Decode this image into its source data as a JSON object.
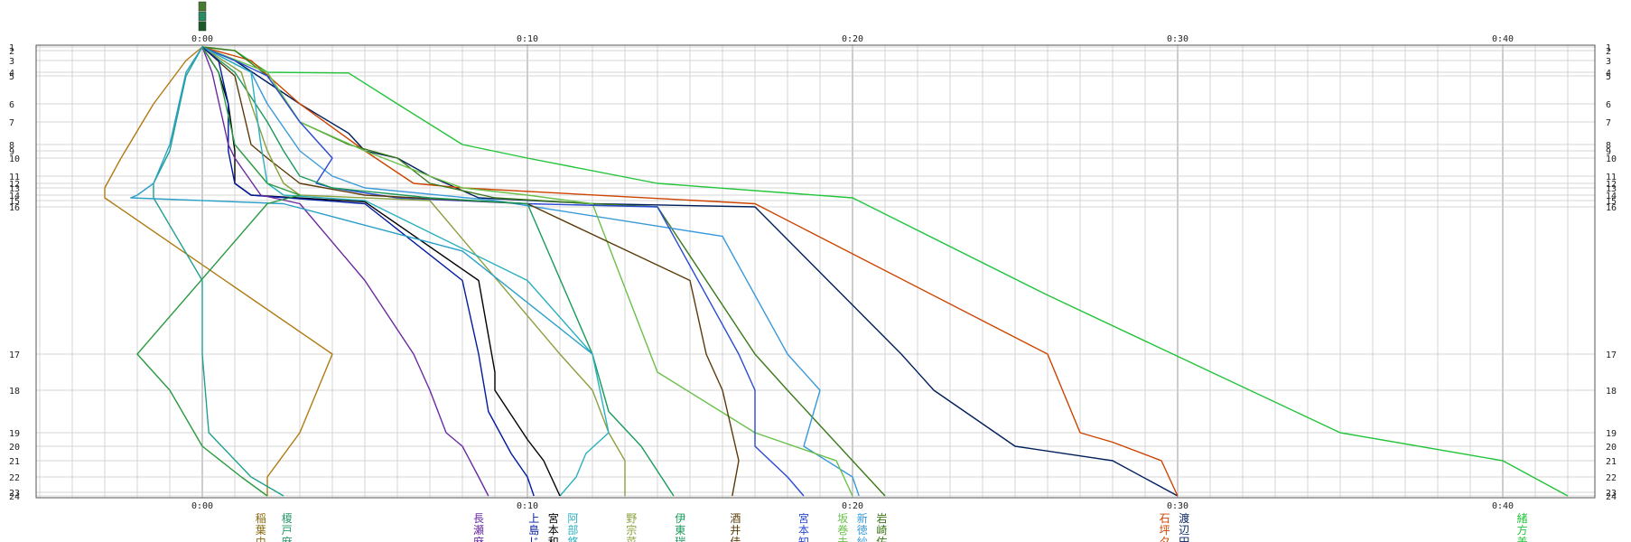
{
  "chart_data": {
    "type": "line",
    "x_axis": {
      "unit": "minutes",
      "range": [
        -6,
        42
      ],
      "ticks": [
        {
          "value": 0,
          "label": "0:00"
        },
        {
          "value": 10,
          "label": "0:10"
        },
        {
          "value": 20,
          "label": "0:20"
        },
        {
          "value": 30,
          "label": "0:30"
        },
        {
          "value": 40,
          "label": "0:40"
        }
      ],
      "minor_grid_step": 1,
      "major_grid_step": 10
    },
    "y_axis": {
      "rows": [
        "1",
        "2",
        "3",
        "4",
        "5",
        "6",
        "7",
        "8",
        "9",
        "10",
        "11",
        "12",
        "13",
        "14",
        "15",
        "16",
        "17",
        "18",
        "19",
        "20",
        "21",
        "22",
        "23",
        "24"
      ],
      "direction": "top-to-bottom"
    },
    "grid": true,
    "colors": {
      "minor_grid": "#d4d4d4",
      "major_grid": "#9a9a9a",
      "frame": "#555555"
    },
    "series": [
      {
        "label": "緒方美",
        "color": "#22c43a",
        "points": [
          [
            0,
            1
          ],
          [
            1,
            2
          ],
          [
            2,
            4
          ],
          [
            4.5,
            4.2
          ],
          [
            6,
            6
          ],
          [
            8,
            8
          ],
          [
            10,
            10
          ],
          [
            14,
            12
          ],
          [
            20,
            14.5
          ],
          [
            26,
            16.6
          ],
          [
            35,
            19
          ],
          [
            40,
            21
          ],
          [
            42,
            24
          ]
        ]
      },
      {
        "label": "渡辺円",
        "color": "#001f5b",
        "points": [
          [
            0,
            1
          ],
          [
            1,
            3
          ],
          [
            3,
            6
          ],
          [
            4.5,
            7.5
          ],
          [
            5,
            9
          ],
          [
            6,
            10
          ],
          [
            7,
            11
          ],
          [
            8.5,
            14.5
          ],
          [
            12,
            15.5
          ],
          [
            17,
            16
          ],
          [
            21.5,
            17
          ],
          [
            22.5,
            18
          ],
          [
            25,
            20
          ],
          [
            28,
            21
          ],
          [
            30,
            24
          ]
        ]
      },
      {
        "label": "石坪夕",
        "color": "#cc4400",
        "points": [
          [
            0,
            1
          ],
          [
            1.5,
            3
          ],
          [
            3,
            6
          ],
          [
            5,
            9
          ],
          [
            6.5,
            12
          ],
          [
            8,
            13
          ],
          [
            17,
            15.5
          ],
          [
            26,
            17
          ],
          [
            27,
            19
          ],
          [
            28,
            19.7
          ],
          [
            29.5,
            21
          ],
          [
            30,
            24
          ]
        ]
      },
      {
        "label": "岩崎佑",
        "color": "#3a7a1a",
        "points": [
          [
            0,
            1
          ],
          [
            1,
            2
          ],
          [
            2,
            5
          ],
          [
            3,
            7
          ],
          [
            4.5,
            8
          ],
          [
            6,
            10
          ],
          [
            7,
            12
          ],
          [
            9,
            14.5
          ],
          [
            12,
            15.5
          ],
          [
            14,
            16
          ],
          [
            17,
            17
          ],
          [
            18,
            18
          ],
          [
            20,
            21
          ],
          [
            21,
            24
          ]
        ]
      },
      {
        "label": "新徳紗",
        "color": "#3a9ad9",
        "points": [
          [
            0,
            1
          ],
          [
            1.5,
            4
          ],
          [
            2,
            6
          ],
          [
            3,
            9
          ],
          [
            4,
            11
          ],
          [
            5,
            13
          ],
          [
            9,
            15
          ],
          [
            16,
            16.2
          ],
          [
            18,
            17
          ],
          [
            19,
            18
          ],
          [
            18.5,
            20
          ],
          [
            20,
            22
          ],
          [
            20.2,
            24
          ]
        ]
      },
      {
        "label": "坂巻未",
        "color": "#6ac04a",
        "points": [
          [
            0,
            1
          ],
          [
            2,
            4
          ],
          [
            3,
            7
          ],
          [
            5,
            9
          ],
          [
            7,
            11
          ],
          [
            8,
            13
          ],
          [
            10,
            14
          ],
          [
            12,
            15.5
          ],
          [
            14,
            17.5
          ],
          [
            17,
            19
          ],
          [
            19.5,
            21
          ],
          [
            20,
            24
          ]
        ]
      },
      {
        "label": "宮本知",
        "color": "#2a4ad0",
        "points": [
          [
            0,
            1
          ],
          [
            1,
            3
          ],
          [
            2,
            5
          ],
          [
            3,
            7
          ],
          [
            4,
            10
          ],
          [
            3.5,
            12
          ],
          [
            4,
            13
          ],
          [
            6,
            14.5
          ],
          [
            10,
            15.5
          ],
          [
            14,
            16
          ],
          [
            16.5,
            17
          ],
          [
            17,
            18
          ],
          [
            17,
            20
          ],
          [
            18,
            22
          ],
          [
            18.5,
            24
          ]
        ]
      },
      {
        "label": "酒井佳",
        "color": "#5a3a08",
        "points": [
          [
            0,
            1
          ],
          [
            1,
            5
          ],
          [
            1.5,
            8
          ],
          [
            2,
            10
          ],
          [
            3,
            12
          ],
          [
            5,
            14
          ],
          [
            10,
            15.5
          ],
          [
            15,
            16.5
          ],
          [
            15.5,
            17
          ],
          [
            16,
            18
          ],
          [
            16.5,
            21
          ],
          [
            16.3,
            24
          ]
        ]
      },
      {
        "label": "伊東瑞",
        "color": "#1a9a5a",
        "points": [
          [
            0,
            1
          ],
          [
            1,
            4
          ],
          [
            2,
            7
          ],
          [
            2.5,
            9
          ],
          [
            3,
            11
          ],
          [
            4,
            13
          ],
          [
            7,
            14.5
          ],
          [
            10,
            15.5
          ],
          [
            12,
            17
          ],
          [
            12.5,
            18.5
          ],
          [
            13.5,
            20
          ],
          [
            14.5,
            24
          ]
        ]
      },
      {
        "label": "野宗菜",
        "color": "#8aa040",
        "points": [
          [
            0,
            1
          ],
          [
            1.2,
            4
          ],
          [
            1.5,
            6
          ],
          [
            2,
            9
          ],
          [
            2.5,
            12
          ],
          [
            3,
            14
          ],
          [
            7,
            15
          ],
          [
            11,
            17
          ],
          [
            12,
            18
          ],
          [
            12.5,
            19
          ],
          [
            13,
            21
          ],
          [
            13,
            24
          ]
        ]
      },
      {
        "label": "阿部悠",
        "color": "#2ab0c0",
        "points": [
          [
            0,
            1
          ],
          [
            1.5,
            4
          ],
          [
            1.8,
            8
          ],
          [
            2,
            12
          ],
          [
            2.5,
            14
          ],
          [
            5,
            15
          ],
          [
            10,
            16.5
          ],
          [
            12,
            17
          ],
          [
            12.5,
            19
          ],
          [
            11.8,
            20.5
          ],
          [
            11.5,
            22
          ],
          [
            11,
            24
          ]
        ]
      },
      {
        "label": "宮本和",
        "color": "#000000",
        "points": [
          [
            0,
            1
          ],
          [
            0.5,
            4
          ],
          [
            0.8,
            6
          ],
          [
            1,
            9
          ],
          [
            1,
            12
          ],
          [
            1.5,
            14
          ],
          [
            5,
            15.2
          ],
          [
            8.5,
            16.5
          ],
          [
            9,
            17.5
          ],
          [
            9,
            18
          ],
          [
            10,
            19.5
          ],
          [
            10.5,
            21
          ],
          [
            11,
            24
          ]
        ]
      },
      {
        "label": "上島じ",
        "color": "#001aa0",
        "points": [
          [
            0,
            1
          ],
          [
            0.5,
            3
          ],
          [
            0.8,
            6
          ],
          [
            0.8,
            9
          ],
          [
            1,
            12
          ],
          [
            1.5,
            14
          ],
          [
            5,
            15.5
          ],
          [
            8,
            16.5
          ],
          [
            8.5,
            17
          ],
          [
            8.8,
            18.5
          ],
          [
            9.5,
            20.5
          ],
          [
            10,
            22
          ],
          [
            10.2,
            24
          ]
        ]
      },
      {
        "label": "長瀬麻",
        "color": "#6a2aa0",
        "points": [
          [
            0,
            1
          ],
          [
            0.3,
            4
          ],
          [
            0.8,
            8
          ],
          [
            1,
            10
          ],
          [
            1.8,
            14
          ],
          [
            3,
            15.5
          ],
          [
            5,
            16.5
          ],
          [
            6.5,
            17
          ],
          [
            7,
            18
          ],
          [
            7.5,
            19
          ],
          [
            8,
            20
          ],
          [
            8.5,
            22
          ],
          [
            8.8,
            24
          ]
        ]
      },
      {
        "label": "稲葉由",
        "color": "#b07a10",
        "points": [
          [
            0,
            1
          ],
          [
            -0.5,
            3
          ],
          [
            -1.5,
            6
          ],
          [
            -2.5,
            10
          ],
          [
            -3,
            13
          ],
          [
            -3,
            14.5
          ],
          [
            4,
            17
          ],
          [
            3,
            19
          ],
          [
            2,
            22
          ],
          [
            2,
            24
          ]
        ]
      },
      {
        "label": "榎戸麻",
        "color": "#20a090",
        "points": [
          [
            0,
            1
          ],
          [
            -0.5,
            5
          ],
          [
            -1,
            9
          ],
          [
            -1.5,
            12
          ],
          [
            -1.5,
            14.5
          ],
          [
            0,
            16.5
          ],
          [
            0,
            17
          ],
          [
            0.2,
            19
          ],
          [
            1.5,
            22
          ],
          [
            2.5,
            24
          ]
        ]
      },
      {
        "label": "",
        "color": "#2aa0c8",
        "points": [
          [
            0,
            1
          ],
          [
            -0.5,
            4
          ],
          [
            -1,
            8
          ],
          [
            -1.5,
            12
          ],
          [
            -2,
            14
          ],
          [
            -2.2,
            14.5
          ],
          [
            2.5,
            15.5
          ],
          [
            8,
            16.3
          ],
          [
            12,
            17
          ]
        ]
      },
      {
        "label": "",
        "color": "#2a9a40",
        "points": [
          [
            0,
            1
          ],
          [
            0.5,
            4
          ],
          [
            1,
            8
          ],
          [
            2,
            12
          ],
          [
            3,
            14
          ],
          [
            2,
            15.5
          ],
          [
            -2,
            17
          ],
          [
            -1,
            18
          ],
          [
            0,
            20
          ],
          [
            1.2,
            22
          ],
          [
            2,
            24
          ]
        ]
      }
    ],
    "bottom_labels": [
      {
        "text": "稲葉由",
        "x": 1.8,
        "color": "#8a6a10"
      },
      {
        "text": "榎戸麻",
        "x": 2.6,
        "color": "#2a9a6a"
      },
      {
        "text": "長瀬麻",
        "x": 8.5,
        "color": "#6a2aa0"
      },
      {
        "text": "上島じ",
        "x": 10.2,
        "color": "#001aa0"
      },
      {
        "text": "宮本和",
        "x": 10.8,
        "color": "#000000"
      },
      {
        "text": "阿部悠",
        "x": 11.4,
        "color": "#2ab0c0"
      },
      {
        "text": "野宗菜",
        "x": 13.2,
        "color": "#8aa040"
      },
      {
        "text": "伊東瑞",
        "x": 14.7,
        "color": "#1a9a5a"
      },
      {
        "text": "酒井佳",
        "x": 16.4,
        "color": "#5a3a08"
      },
      {
        "text": "宮本知",
        "x": 18.5,
        "color": "#2a4ad0"
      },
      {
        "text": "坂巻未",
        "x": 19.7,
        "color": "#6ac04a"
      },
      {
        "text": "新徳紗",
        "x": 20.3,
        "color": "#3a9ad9"
      },
      {
        "text": "岩崎佑",
        "x": 20.9,
        "color": "#3a7a1a"
      },
      {
        "text": "石坪夕",
        "x": 29.6,
        "color": "#cc4400"
      },
      {
        "text": "渡辺円",
        "x": 30.2,
        "color": "#001f5b"
      },
      {
        "text": "緒方美",
        "x": 40.6,
        "color": "#22c43a"
      }
    ]
  }
}
